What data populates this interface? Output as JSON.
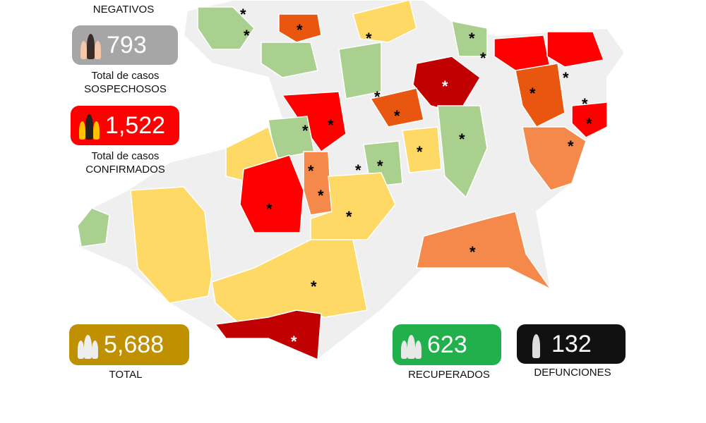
{
  "negativos_label": "NEGATIVOS",
  "sospechosos": {
    "value": "793",
    "label1": "Total de casos",
    "label2": "SOSPECHOSOS",
    "color": "#a6a6a6"
  },
  "confirmados": {
    "value": "1,522",
    "label1": "Total de casos",
    "label2": "CONFIRMADOS",
    "color": "#ff0000"
  },
  "total": {
    "value": "5,688",
    "label": "TOTAL",
    "color": "#bf9000"
  },
  "recuperados": {
    "value": "623",
    "label": "RECUPERADOS",
    "color": "#21b04b"
  },
  "defunciones": {
    "value": "132",
    "label": "DEFUNCIONES",
    "color": "#111111"
  },
  "marker": "*",
  "legend_colors": {
    "none": "#efefef",
    "low": "#a9d08e",
    "mid": "#ffd966",
    "high": "#f4894b",
    "higher": "#e8560f",
    "very_high": "#ff0000",
    "max": "#c00000"
  }
}
